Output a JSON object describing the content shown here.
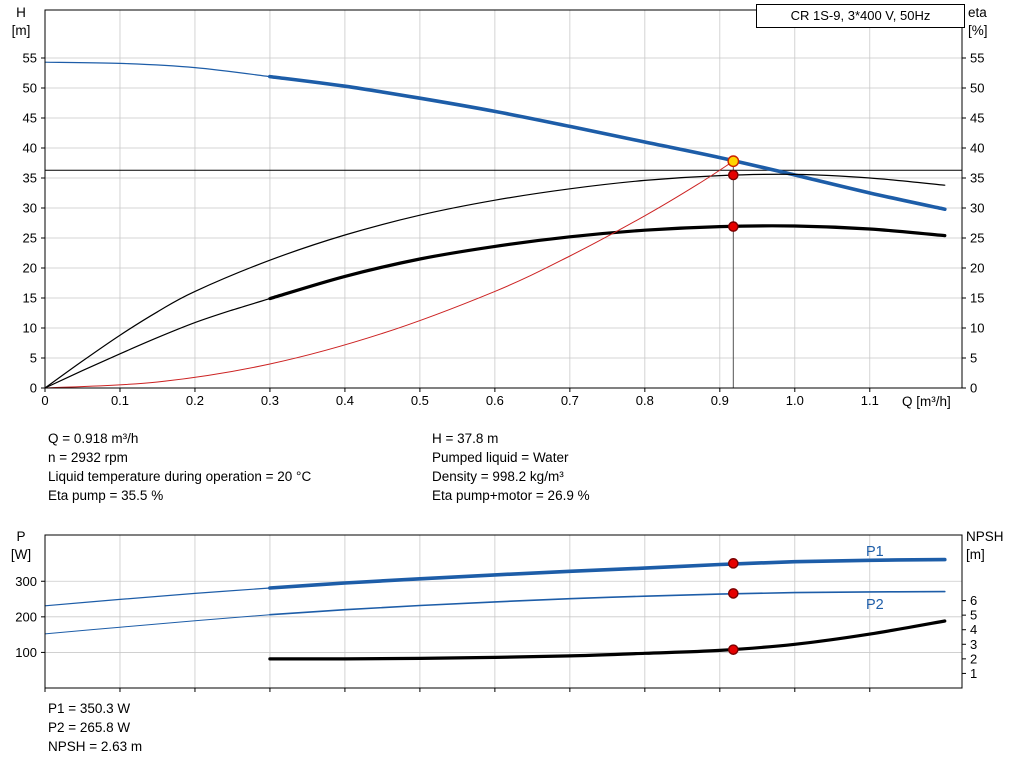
{
  "colors": {
    "curve_blue": "#1d5da8",
    "curve_black": "#000000",
    "system_red": "#cc2222",
    "duty_yellow": "#ffd400",
    "marker_red": "#e60000",
    "grid": "#c9c9c9"
  },
  "info_panel": {
    "left": [
      "Q = 0.918 m³/h",
      "n = 2932 rpm",
      "Liquid temperature during operation = 20 °C",
      "Eta pump = 35.5 %"
    ],
    "right": [
      "H = 37.8 m",
      "Pumped liquid = Water",
      "Density = 998.2 kg/m³",
      "Eta pump+motor = 26.9 %"
    ]
  },
  "results_panel": [
    "P1 = 350.3 W",
    "P2 = 265.8 W",
    "NPSH = 2.63 m"
  ],
  "chart_data": [
    {
      "id": "hq-eta-chart",
      "type": "line",
      "title": "CR 1S-9, 3*400 V, 50Hz",
      "x_axis": {
        "label": "Q [m³/h]",
        "min": 0,
        "max": 1.223,
        "show_tick_labels": true,
        "ticks": [
          [
            0,
            "0"
          ],
          [
            0.1,
            "0.1"
          ],
          [
            0.2,
            "0.2"
          ],
          [
            0.3,
            "0.3"
          ],
          [
            0.4,
            "0.4"
          ],
          [
            0.5,
            "0.5"
          ],
          [
            0.6,
            "0.6"
          ],
          [
            0.7,
            "0.7"
          ],
          [
            0.8,
            "0.8"
          ],
          [
            0.9,
            "0.9"
          ],
          [
            1,
            "1.0"
          ],
          [
            1.1,
            "1.1"
          ]
        ]
      },
      "y_left": {
        "name": "H",
        "unit": "[m]",
        "min": 0,
        "max": 63,
        "ticks": [
          [
            0,
            "0"
          ],
          [
            5,
            "5"
          ],
          [
            10,
            "10"
          ],
          [
            15,
            "15"
          ],
          [
            20,
            "20"
          ],
          [
            25,
            "25"
          ],
          [
            30,
            "30"
          ],
          [
            35,
            "35"
          ],
          [
            40,
            "40"
          ],
          [
            45,
            "45"
          ],
          [
            50,
            "50"
          ],
          [
            55,
            "55"
          ]
        ]
      },
      "y_right": {
        "name": "eta",
        "unit": "[%]",
        "min": 0,
        "max": 63,
        "ticks": [
          [
            0,
            "0"
          ],
          [
            5,
            "5"
          ],
          [
            10,
            "10"
          ],
          [
            15,
            "15"
          ],
          [
            20,
            "20"
          ],
          [
            25,
            "25"
          ],
          [
            30,
            "30"
          ],
          [
            35,
            "35"
          ],
          [
            40,
            "40"
          ],
          [
            45,
            "45"
          ],
          [
            50,
            "50"
          ],
          [
            55,
            "55"
          ]
        ]
      },
      "series": [
        {
          "name": "pump-curve-low-flow",
          "color": "#1d5da8",
          "width": 1.2,
          "points": [
            [
              0,
              54.3
            ],
            [
              0.1,
              54.1
            ],
            [
              0.2,
              53.4
            ],
            [
              0.3,
              51.9
            ]
          ]
        },
        {
          "name": "pump-curve",
          "color": "#1d5da8",
          "width": 3.6,
          "points": [
            [
              0.3,
              51.9
            ],
            [
              0.4,
              50.3
            ],
            [
              0.5,
              48.3
            ],
            [
              0.6,
              46.1
            ],
            [
              0.7,
              43.6
            ],
            [
              0.8,
              41
            ],
            [
              0.9,
              38.4
            ],
            [
              1,
              35.5
            ],
            [
              1.1,
              32.5
            ],
            [
              1.2,
              29.8
            ]
          ]
        },
        {
          "name": "eta-pump-curve",
          "color": "#000000",
          "width": 1.2,
          "points": [
            [
              0,
              0
            ],
            [
              0.05,
              4.5
            ],
            [
              0.1,
              8.8
            ],
            [
              0.15,
              12.7
            ],
            [
              0.2,
              16.1
            ],
            [
              0.3,
              21.3
            ],
            [
              0.4,
              25.5
            ],
            [
              0.5,
              28.8
            ],
            [
              0.6,
              31.3
            ],
            [
              0.7,
              33.2
            ],
            [
              0.8,
              34.6
            ],
            [
              0.9,
              35.4
            ],
            [
              1,
              35.6
            ],
            [
              1.1,
              35
            ],
            [
              1.2,
              33.8
            ]
          ]
        },
        {
          "name": "eta-pump-motor-low-flow",
          "color": "#000000",
          "width": 1.2,
          "points": [
            [
              0,
              0
            ],
            [
              0.05,
              2.9
            ],
            [
              0.1,
              5.7
            ],
            [
              0.15,
              8.4
            ],
            [
              0.2,
              10.9
            ],
            [
              0.25,
              13
            ],
            [
              0.3,
              14.9
            ]
          ]
        },
        {
          "name": "eta-pump-motor-curve",
          "color": "#000000",
          "width": 3.2,
          "points": [
            [
              0.3,
              14.9
            ],
            [
              0.4,
              18.6
            ],
            [
              0.5,
              21.5
            ],
            [
              0.6,
              23.6
            ],
            [
              0.7,
              25.2
            ],
            [
              0.8,
              26.3
            ],
            [
              0.9,
              26.9
            ],
            [
              1,
              27
            ],
            [
              1.1,
              26.5
            ],
            [
              1.2,
              25.4
            ]
          ]
        },
        {
          "name": "system-curve",
          "color": "#cc2222",
          "width": 1,
          "points": [
            [
              0,
              0
            ],
            [
              0.15,
              1
            ],
            [
              0.3,
              4
            ],
            [
              0.45,
              9.1
            ],
            [
              0.6,
              16.1
            ],
            [
              0.7,
              22
            ],
            [
              0.8,
              28.7
            ],
            [
              0.87,
              33.9
            ],
            [
              0.918,
              37.8
            ]
          ]
        }
      ],
      "ref_lines": [
        {
          "type": "v",
          "q": 0.918,
          "from": 37.8,
          "to": 0,
          "color": "#555555",
          "width": 1
        },
        {
          "type": "h",
          "value": 36.3,
          "color": "#000000",
          "width": 1
        }
      ],
      "markers": [
        {
          "name": "duty-point",
          "q": 0.918,
          "value": 37.8,
          "axis": "left",
          "r": 5.2,
          "fill": "#ffd400",
          "stroke": "#cc2200"
        },
        {
          "name": "eta-pump-duty-point",
          "q": 0.918,
          "value": 35.5,
          "axis": "left",
          "r": 4.6,
          "fill": "#e60000",
          "stroke": "#7a0000"
        },
        {
          "name": "eta-pump-motor-duty-point",
          "q": 0.918,
          "value": 26.9,
          "axis": "left",
          "r": 4.6,
          "fill": "#e60000",
          "stroke": "#7a0000"
        }
      ],
      "curve_labels": []
    },
    {
      "id": "power-npsh-chart",
      "type": "line",
      "title": "",
      "x_axis": {
        "label": "",
        "min": 0,
        "max": 1.223,
        "show_tick_labels": false,
        "ticks": [
          [
            0,
            "0"
          ],
          [
            0.1,
            "0.1"
          ],
          [
            0.2,
            "0.2"
          ],
          [
            0.3,
            "0.3"
          ],
          [
            0.4,
            "0.4"
          ],
          [
            0.5,
            "0.5"
          ],
          [
            0.6,
            "0.6"
          ],
          [
            0.7,
            "0.7"
          ],
          [
            0.8,
            "0.8"
          ],
          [
            0.9,
            "0.9"
          ],
          [
            1,
            "1.0"
          ],
          [
            1.1,
            "1.1"
          ]
        ]
      },
      "y_left": {
        "name": "P",
        "unit": "[W]",
        "min": 0,
        "max": 430,
        "ticks": [
          [
            100,
            "100"
          ],
          [
            200,
            "200"
          ],
          [
            300,
            "300"
          ]
        ]
      },
      "y_right": {
        "name": "NPSH",
        "unit": "[m]",
        "min": 0,
        "max": 10.5,
        "ticks": [
          [
            1,
            "1"
          ],
          [
            2,
            "2"
          ],
          [
            3,
            "3"
          ],
          [
            4,
            "4"
          ],
          [
            5,
            "5"
          ],
          [
            6,
            "6"
          ]
        ]
      },
      "series": [
        {
          "name": "p1-curve-low-flow",
          "color": "#1d5da8",
          "width": 1.2,
          "points": [
            [
              0,
              231
            ],
            [
              0.1,
              249
            ],
            [
              0.2,
              266
            ],
            [
              0.3,
              281
            ]
          ]
        },
        {
          "name": "p1-curve",
          "color": "#1d5da8",
          "width": 3.6,
          "points": [
            [
              0.3,
              281
            ],
            [
              0.4,
              295
            ],
            [
              0.5,
              307
            ],
            [
              0.6,
              318
            ],
            [
              0.7,
              328
            ],
            [
              0.8,
              337
            ],
            [
              0.9,
              347
            ],
            [
              1,
              355
            ],
            [
              1.1,
              359
            ],
            [
              1.2,
              361
            ]
          ]
        },
        {
          "name": "p2-curve-low-flow",
          "color": "#1d5da8",
          "width": 1,
          "points": [
            [
              0,
              152
            ],
            [
              0.1,
              171
            ],
            [
              0.2,
              189
            ],
            [
              0.3,
              206
            ]
          ]
        },
        {
          "name": "p2-curve",
          "color": "#1d5da8",
          "width": 1.6,
          "points": [
            [
              0.3,
              206
            ],
            [
              0.4,
              220
            ],
            [
              0.5,
              232
            ],
            [
              0.6,
              242
            ],
            [
              0.7,
              251
            ],
            [
              0.8,
              258
            ],
            [
              0.9,
              264
            ],
            [
              1,
              268
            ],
            [
              1.1,
              270
            ],
            [
              1.2,
              271
            ]
          ]
        },
        {
          "name": "npsh-curve",
          "color": "#000000",
          "width": 3.2,
          "axis": "right",
          "points": [
            [
              0.3,
              2
            ],
            [
              0.4,
              2
            ],
            [
              0.5,
              2.03
            ],
            [
              0.6,
              2.1
            ],
            [
              0.7,
              2.2
            ],
            [
              0.8,
              2.38
            ],
            [
              0.9,
              2.58
            ],
            [
              1,
              3
            ],
            [
              1.1,
              3.7
            ],
            [
              1.2,
              4.6
            ]
          ]
        }
      ],
      "ref_lines": [],
      "markers": [
        {
          "name": "p1-duty-point",
          "q": 0.918,
          "value": 350.3,
          "axis": "left",
          "r": 4.6,
          "fill": "#e60000",
          "stroke": "#7a0000"
        },
        {
          "name": "p2-duty-point",
          "q": 0.918,
          "value": 265.8,
          "axis": "left",
          "r": 4.6,
          "fill": "#e60000",
          "stroke": "#7a0000"
        },
        {
          "name": "npsh-duty-point",
          "q": 0.918,
          "value": 2.63,
          "axis": "right",
          "r": 4.6,
          "fill": "#e60000",
          "stroke": "#7a0000"
        }
      ],
      "curve_labels": [
        {
          "text": "P1",
          "q": 1.095,
          "value": 371
        },
        {
          "text": "P2",
          "q": 1.095,
          "value": 222
        }
      ]
    }
  ]
}
